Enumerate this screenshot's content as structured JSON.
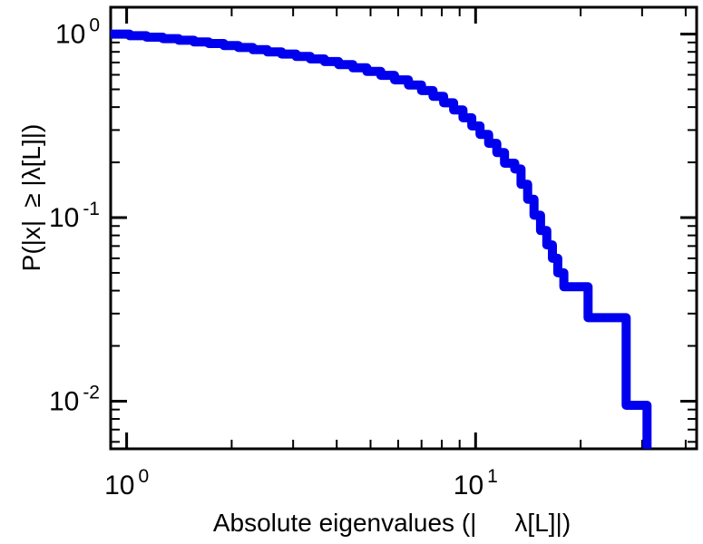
{
  "figure": {
    "background": "#ffffff",
    "axis_color": "#000000",
    "text_color": "#000000"
  },
  "chart_data": {
    "type": "line",
    "style": "step-staircase-ccdf",
    "scale": "log-log",
    "title": "",
    "xlabel": "Absolute eigenvalues (|  λ[L]|)",
    "ylabel": "P(|x| ≥ |λ[L]|)",
    "xlim": [
      0.9,
      43
    ],
    "ylim": [
      0.0055,
      1.4
    ],
    "grid": false,
    "legend": "none",
    "line_color": "#0000ee",
    "line_width": 10,
    "x_tick_labels": [
      {
        "value": 1,
        "base": "10",
        "exp": "0"
      },
      {
        "value": 10,
        "base": "10",
        "exp": "1"
      }
    ],
    "y_tick_labels": [
      {
        "value": 1,
        "base": "10",
        "exp": "0"
      },
      {
        "value": 0.1,
        "base": "10",
        "exp": "-1"
      },
      {
        "value": 0.01,
        "base": "10",
        "exp": "-2"
      }
    ],
    "points": [
      [
        0.9,
        1.0
      ],
      [
        1.02,
        0.98
      ],
      [
        1.14,
        0.962
      ],
      [
        1.27,
        0.944
      ],
      [
        1.41,
        0.925
      ],
      [
        1.56,
        0.906
      ],
      [
        1.72,
        0.888
      ],
      [
        1.9,
        0.866
      ],
      [
        2.09,
        0.845
      ],
      [
        2.3,
        0.822
      ],
      [
        2.53,
        0.8
      ],
      [
        2.78,
        0.778
      ],
      [
        3.06,
        0.755
      ],
      [
        3.36,
        0.732
      ],
      [
        3.69,
        0.708
      ],
      [
        4.05,
        0.682
      ],
      [
        4.45,
        0.655
      ],
      [
        4.88,
        0.626
      ],
      [
        5.35,
        0.596
      ],
      [
        5.86,
        0.563
      ],
      [
        6.42,
        0.528
      ],
      [
        7.0,
        0.492
      ],
      [
        7.55,
        0.458
      ],
      [
        8.1,
        0.422
      ],
      [
        8.65,
        0.386
      ],
      [
        9.2,
        0.35
      ],
      [
        9.75,
        0.316
      ],
      [
        10.3,
        0.284
      ],
      [
        10.9,
        0.254
      ],
      [
        11.5,
        0.226
      ],
      [
        12.1,
        0.198
      ],
      [
        12.95,
        0.184
      ],
      [
        13.5,
        0.152
      ],
      [
        14.1,
        0.126
      ],
      [
        14.7,
        0.103
      ],
      [
        15.35,
        0.085
      ],
      [
        16.0,
        0.071
      ],
      [
        16.6,
        0.06
      ],
      [
        17.2,
        0.05
      ],
      [
        17.9,
        0.042
      ],
      [
        21.0,
        0.0285
      ],
      [
        27.0,
        0.0095
      ],
      [
        31.0,
        0.004
      ]
    ]
  }
}
